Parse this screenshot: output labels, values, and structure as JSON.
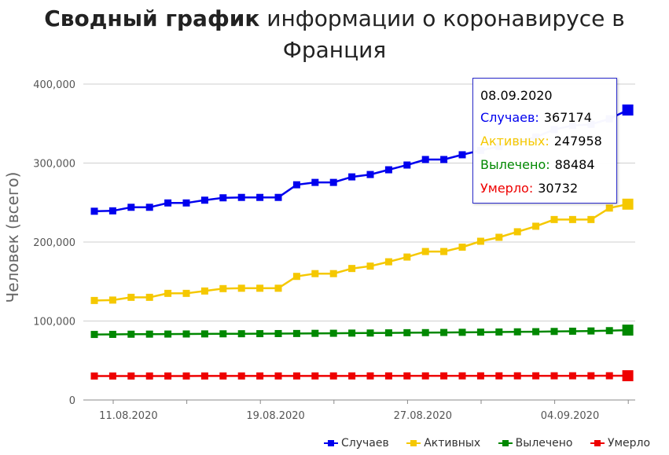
{
  "title_bold": "Сводный график",
  "title_rest": " информации о коронавирусе в Франция",
  "chart_data": {
    "type": "line",
    "ylabel": "Человек (всего)",
    "ylim": [
      0,
      400000
    ],
    "y_ticks": [
      "0",
      "100,000",
      "200,000",
      "300,000",
      "400,000"
    ],
    "x_ticks": [
      "11.08.2020",
      "19.08.2020",
      "27.08.2020",
      "04.09.2020"
    ],
    "x": [
      "10.08.2020",
      "11.08.2020",
      "12.08.2020",
      "13.08.2020",
      "14.08.2020",
      "15.08.2020",
      "16.08.2020",
      "17.08.2020",
      "18.08.2020",
      "19.08.2020",
      "20.08.2020",
      "21.08.2020",
      "22.08.2020",
      "23.08.2020",
      "24.08.2020",
      "25.08.2020",
      "26.08.2020",
      "27.08.2020",
      "28.08.2020",
      "29.08.2020",
      "30.08.2020",
      "31.08.2020",
      "01.09.2020",
      "02.09.2020",
      "03.09.2020",
      "04.09.2020",
      "05.09.2020",
      "06.09.2020",
      "07.09.2020",
      "08.09.2020"
    ],
    "grid": true,
    "legend_position": "bottom-right",
    "series": [
      {
        "name": "Случаев",
        "color": "#0000ee",
        "values": [
          239000,
          239500,
          244000,
          244000,
          249500,
          249500,
          253000,
          256000,
          256500,
          256500,
          256500,
          272500,
          275500,
          275500,
          282500,
          285500,
          291500,
          297500,
          304500,
          304500,
          310500,
          316000,
          321000,
          327500,
          333000,
          342500,
          347500,
          349000,
          356000,
          367174
        ]
      },
      {
        "name": "Активных",
        "color": "#f5c800",
        "values": [
          126000,
          126500,
          130000,
          130000,
          135000,
          135000,
          138000,
          141000,
          141500,
          141500,
          141500,
          156500,
          160000,
          160000,
          166500,
          169500,
          175000,
          181000,
          188000,
          188000,
          193500,
          201000,
          206000,
          213000,
          220000,
          228500,
          228500,
          228500,
          243000,
          247958
        ]
      },
      {
        "name": "Вылечено",
        "color": "#008800",
        "values": [
          83000,
          83100,
          83300,
          83400,
          83500,
          83600,
          83700,
          83800,
          83900,
          84000,
          84100,
          84200,
          84400,
          84500,
          84700,
          84800,
          85000,
          85200,
          85300,
          85500,
          85700,
          85900,
          86100,
          86300,
          86500,
          86800,
          87100,
          87400,
          87800,
          88484
        ]
      },
      {
        "name": "Умерло",
        "color": "#ee0000",
        "values": [
          30330,
          30340,
          30360,
          30370,
          30380,
          30390,
          30400,
          30410,
          30420,
          30430,
          30440,
          30450,
          30460,
          30470,
          30480,
          30500,
          30510,
          30520,
          30530,
          30550,
          30560,
          30570,
          30590,
          30600,
          30620,
          30640,
          30660,
          30680,
          30700,
          30732
        ]
      }
    ]
  },
  "tooltip": {
    "date": "08.09.2020",
    "rows": [
      {
        "label": "Случаев:",
        "value": "367174",
        "color": "#0000ee"
      },
      {
        "label": "Активных:",
        "value": "247958",
        "color": "#f5c800"
      },
      {
        "label": "Вылечено:",
        "value": "88484",
        "color": "#008800"
      },
      {
        "label": "Умерло:",
        "value": "30732",
        "color": "#ee0000"
      }
    ]
  }
}
